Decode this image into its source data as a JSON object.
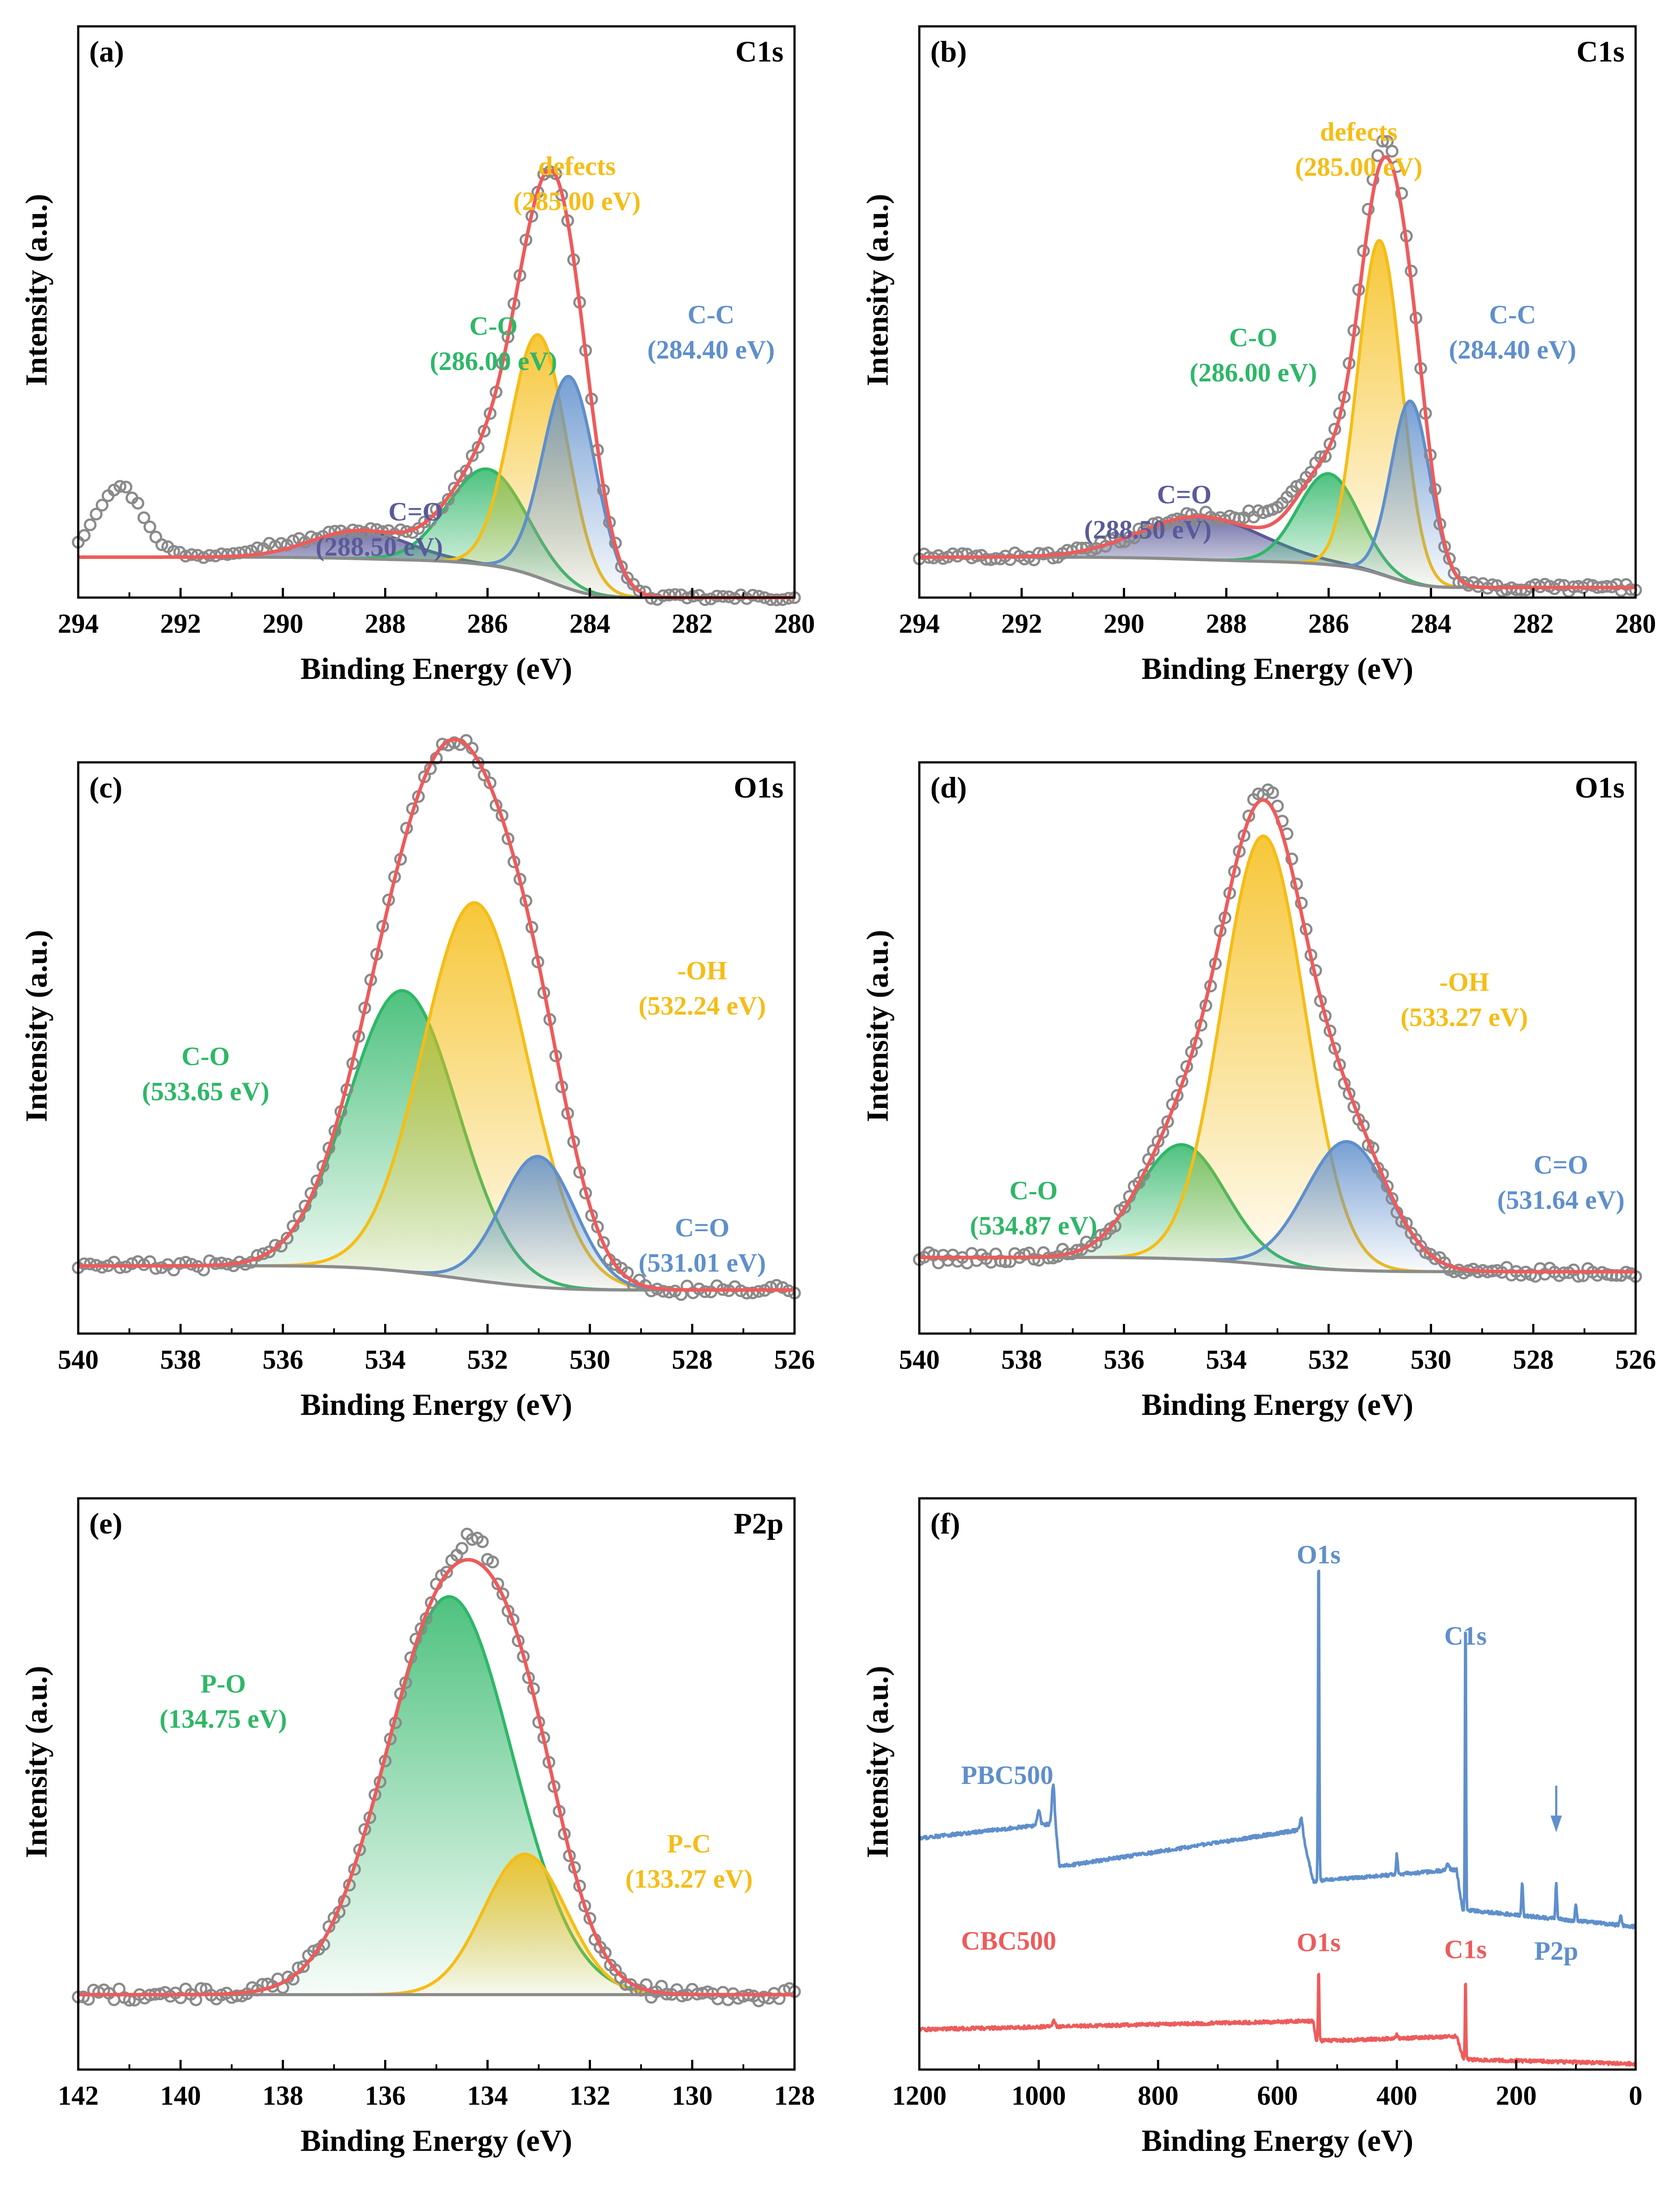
{
  "figure": {
    "colors": {
      "data": "#8a8a8a",
      "fit": "#ee5b5b",
      "background": "#8c8c8c",
      "cc": "#5f8fcc",
      "defects": "#f5bd16",
      "co": "#2fb768",
      "c_eq_o": "#5a5a9a",
      "pbc": "#5f8fcc",
      "cbc": "#ee5b5b"
    }
  },
  "chart_data": [
    {
      "id": "a",
      "type": "line",
      "panel_label": "(a)",
      "title": "C1s",
      "xlabel": "Binding Energy (eV)",
      "ylabel": "Intensity (a.u.)",
      "xlim": [
        294,
        280
      ],
      "xticks": [
        294,
        292,
        290,
        288,
        286,
        284,
        282,
        280
      ],
      "ylim": [
        -0.08,
        1.05
      ],
      "fit": {
        "label": "fit",
        "color": "#ee5b5b"
      },
      "background": {
        "label": "background",
        "start": 0.0,
        "end": -0.08,
        "slope_scale": 1.0
      },
      "components": [
        {
          "name": "C=O",
          "energy": "(288.50 eV)",
          "center": 288.5,
          "height": 0.055,
          "fwhm": 2.2,
          "color": "#5a5a9a"
        },
        {
          "name": "C-O",
          "energy": "(286.00 eV)",
          "center": 286.0,
          "height": 0.19,
          "fwhm": 1.8,
          "color": "#2fb768"
        },
        {
          "name": "defects",
          "energy": "(285.00 eV)",
          "center": 285.0,
          "height": 0.48,
          "fwhm": 1.3,
          "color": "#f5bd16"
        },
        {
          "name": "C-C",
          "energy": "(284.40 eV)",
          "center": 284.4,
          "height": 0.42,
          "fwhm": 1.2,
          "color": "#5f8fcc"
        }
      ],
      "raw_data": {
        "noise": 0.006,
        "points": 120,
        "bumps": [
          {
            "center": 293.2,
            "height": 0.14,
            "fwhm": 1.1
          },
          {
            "center": 290.4,
            "height": 0.015,
            "fwhm": 1.5
          }
        ]
      }
    },
    {
      "id": "b",
      "type": "line",
      "panel_label": "(b)",
      "title": "C1s",
      "xlabel": "Binding Energy (eV)",
      "ylabel": "Intensity (a.u.)",
      "xlim": [
        294,
        280
      ],
      "xticks": [
        294,
        292,
        290,
        288,
        286,
        284,
        282,
        280
      ],
      "ylim": [
        -0.08,
        1.05
      ],
      "fit": {
        "label": "fit",
        "color": "#ee5b5b"
      },
      "background": {
        "label": "background",
        "start": 0.0,
        "end": -0.06,
        "slope_scale": 1.0
      },
      "components": [
        {
          "name": "C=O",
          "energy": "(288.50 eV)",
          "center": 288.5,
          "height": 0.085,
          "fwhm": 2.8,
          "color": "#5a5a9a"
        },
        {
          "name": "C-O",
          "energy": "(286.00 eV)",
          "center": 286.0,
          "height": 0.18,
          "fwhm": 1.4,
          "color": "#2fb768"
        },
        {
          "name": "defects",
          "energy": "(285.00 eV)",
          "center": 285.0,
          "height": 0.66,
          "fwhm": 1.0,
          "color": "#f5bd16"
        },
        {
          "name": "C-C",
          "energy": "(284.40 eV)",
          "center": 284.4,
          "height": 0.36,
          "fwhm": 0.9,
          "color": "#5f8fcc"
        }
      ],
      "raw_data": {
        "noise": 0.008,
        "points": 150,
        "bumps": [
          {
            "center": 287.2,
            "height": 0.03,
            "fwhm": 1.2
          },
          {
            "center": 284.9,
            "height": 0.04,
            "fwhm": 0.8
          }
        ]
      }
    },
    {
      "id": "c",
      "type": "line",
      "panel_label": "(c)",
      "title": "O1s",
      "xlabel": "Binding Energy (eV)",
      "ylabel": "Intensity (a.u.)",
      "xlim": [
        540,
        526
      ],
      "xticks": [
        540,
        538,
        536,
        534,
        532,
        530,
        528,
        526
      ],
      "ylim": [
        -0.14,
        1.04
      ],
      "fit": {
        "label": "fit",
        "color": "#ee5b5b"
      },
      "background": {
        "label": "background",
        "start": 0.0,
        "end": -0.05,
        "slope_scale": 1.0
      },
      "components": [
        {
          "name": "C-O",
          "energy": "(533.65 eV)",
          "center": 533.65,
          "height": 0.58,
          "fwhm": 2.5,
          "color": "#2fb768"
        },
        {
          "name": "-OH",
          "energy": "(532.24 eV)",
          "center": 532.24,
          "height": 0.78,
          "fwhm": 2.4,
          "color": "#f5bd16"
        },
        {
          "name": "C=O",
          "energy": "(531.01 eV)",
          "center": 531.01,
          "height": 0.27,
          "fwhm": 1.7,
          "color": "#5f8fcc"
        }
      ],
      "raw_data": {
        "noise": 0.01,
        "points": 120,
        "bumps": []
      }
    },
    {
      "id": "d",
      "type": "line",
      "panel_label": "(d)",
      "title": "O1s",
      "xlabel": "Binding Energy (eV)",
      "ylabel": "Intensity (a.u.)",
      "xlim": [
        540,
        526
      ],
      "xticks": [
        540,
        538,
        536,
        534,
        532,
        530,
        528,
        526
      ],
      "ylim": [
        -0.16,
        1.04
      ],
      "fit": {
        "label": "fit",
        "color": "#ee5b5b"
      },
      "background": {
        "label": "background",
        "start": 0.0,
        "end": -0.03,
        "slope_scale": 1.0
      },
      "components": [
        {
          "name": "C-O",
          "energy": "(534.87 eV)",
          "center": 534.87,
          "height": 0.24,
          "fwhm": 2.0,
          "color": "#2fb768"
        },
        {
          "name": "-OH",
          "energy": "(533.27 eV)",
          "center": 533.27,
          "height": 0.9,
          "fwhm": 1.9,
          "color": "#f5bd16"
        },
        {
          "name": "C=O",
          "energy": "(531.64 eV)",
          "center": 531.64,
          "height": 0.27,
          "fwhm": 1.9,
          "color": "#5f8fcc"
        }
      ],
      "raw_data": {
        "noise": 0.012,
        "points": 150,
        "bumps": [
          {
            "center": 532.9,
            "height": 0.03,
            "fwhm": 0.8
          }
        ]
      }
    },
    {
      "id": "e",
      "type": "line",
      "panel_label": "(e)",
      "title": "P2p",
      "xlabel": "Binding Energy (eV)",
      "ylabel": "Intensity (a.u.)",
      "xlim": [
        142,
        128
      ],
      "xticks": [
        142,
        140,
        138,
        136,
        134,
        132,
        130,
        128
      ],
      "ylim": [
        -0.16,
        1.06
      ],
      "fit": {
        "label": "fit",
        "color": "#ee5b5b"
      },
      "background": {
        "label": "background",
        "start": 0.0,
        "end": 0.0,
        "slope_scale": 1.0
      },
      "components": [
        {
          "name": "P-O",
          "energy": "(134.75 eV)",
          "center": 134.75,
          "height": 0.85,
          "fwhm": 2.9,
          "color": "#2fb768"
        },
        {
          "name": "P-C",
          "energy": "(133.27 eV)",
          "center": 133.27,
          "height": 0.3,
          "fwhm": 1.9,
          "color": "#f5bd16"
        }
      ],
      "raw_data": {
        "noise": 0.014,
        "points": 140,
        "bumps": [
          {
            "center": 134.3,
            "height": 0.05,
            "fwhm": 0.7
          }
        ]
      }
    },
    {
      "id": "f",
      "type": "line",
      "panel_label": "(f)",
      "title": "",
      "xlabel": "Binding Energy (eV)",
      "ylabel": "Intensity (a.u.)",
      "xlim": [
        1200,
        0
      ],
      "xticks": [
        1200,
        1000,
        800,
        600,
        400,
        200,
        0
      ],
      "ylim": [
        0,
        1
      ],
      "series": [
        {
          "name": "PBC500",
          "color": "#5f8fcc",
          "baseline": [
            [
              1200,
              0.405
            ],
            [
              980,
              0.43
            ],
            [
              975,
              0.46
            ],
            [
              965,
              0.355
            ],
            [
              560,
              0.42
            ],
            [
              540,
              0.33
            ],
            [
              300,
              0.35
            ],
            [
              290,
              0.28
            ],
            [
              0,
              0.25
            ]
          ],
          "peaks": [
            {
              "center": 1000,
              "height": 0.025,
              "width": 6
            },
            {
              "center": 976,
              "height": 0.045,
              "width": 5
            },
            {
              "center": 560,
              "height": 0.02,
              "width": 6
            },
            {
              "center": 531,
              "height": 0.6,
              "width": 2.2
            },
            {
              "center": 400,
              "height": 0.035,
              "width": 3
            },
            {
              "center": 315,
              "height": 0.01,
              "width": 6
            },
            {
              "center": 285,
              "height": 0.55,
              "width": 2.0
            },
            {
              "center": 190,
              "height": 0.055,
              "width": 3
            },
            {
              "center": 133,
              "height": 0.06,
              "width": 3
            },
            {
              "center": 100,
              "height": 0.03,
              "width": 3
            },
            {
              "center": 25,
              "height": 0.015,
              "width": 4
            }
          ],
          "annotations": [
            {
              "text": "O1s",
              "energy": 531
            },
            {
              "text": "C1s",
              "energy": 285
            },
            {
              "text": "P2p",
              "energy": 133,
              "arrow": true
            }
          ]
        },
        {
          "name": "CBC500",
          "color": "#ee5b5b",
          "baseline": [
            [
              1200,
              0.07
            ],
            [
              540,
              0.085
            ],
            [
              535,
              0.05
            ],
            [
              300,
              0.058
            ],
            [
              288,
              0.018
            ],
            [
              0,
              0.01
            ]
          ],
          "peaks": [
            {
              "center": 975,
              "height": 0.012,
              "width": 5
            },
            {
              "center": 531,
              "height": 0.13,
              "width": 2.2
            },
            {
              "center": 400,
              "height": 0.008,
              "width": 3
            },
            {
              "center": 285,
              "height": 0.15,
              "width": 2.0
            }
          ],
          "annotations": [
            {
              "text": "O1s",
              "energy": 531
            },
            {
              "text": "C1s",
              "energy": 285
            }
          ]
        }
      ]
    }
  ]
}
